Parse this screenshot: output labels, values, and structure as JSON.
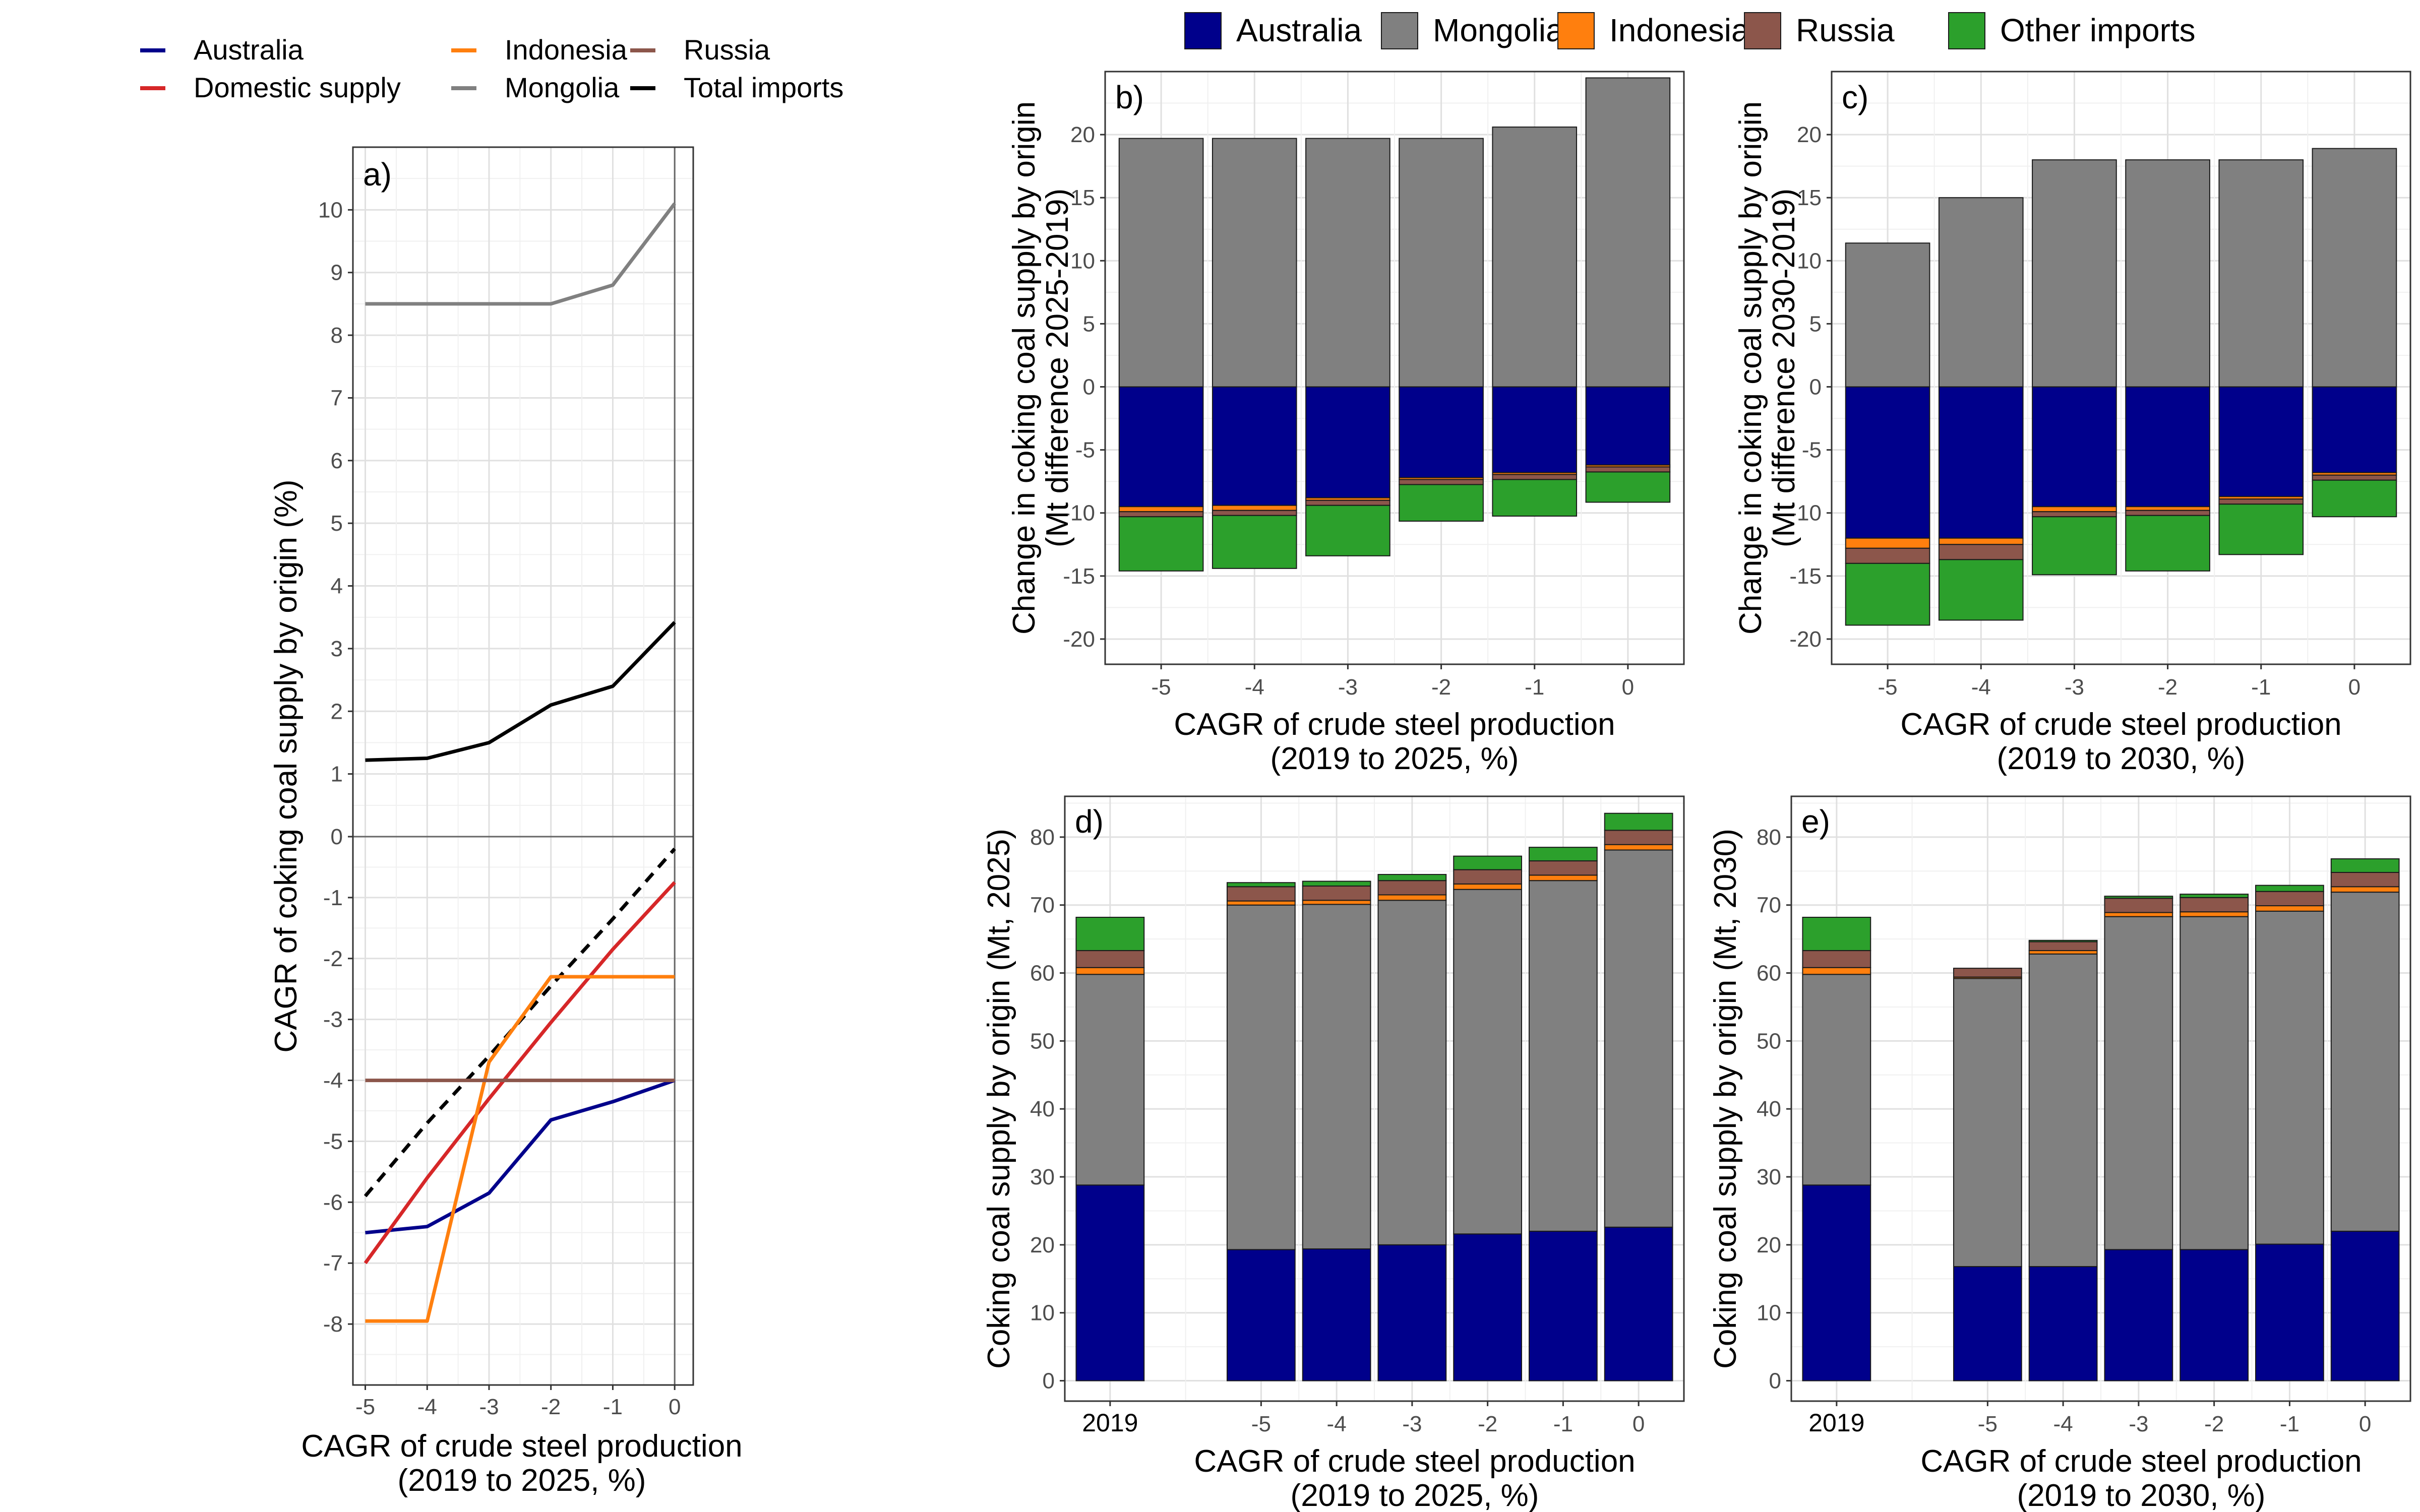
{
  "colors": {
    "Australia": "#00008B",
    "Mongolia": "#808080",
    "Indonesia": "#FF7F0E",
    "Russia": "#8C564B",
    "Other imports": "#2CA02C",
    "Domestic supply": "#D62728",
    "Total imports": "#000000"
  },
  "chart_data": [
    {
      "id": "a",
      "panel_label": "a)",
      "type": "line",
      "xlabel": [
        "CAGR of crude steel production",
        "(2019 to 2025, %)"
      ],
      "ylabel": "CAGR of coking coal supply by origin (%)",
      "x": [
        -5,
        -4,
        -3,
        -2,
        -1,
        0
      ],
      "xlim": [
        -5.2,
        0.3
      ],
      "upper": {
        "ylim": [
          0,
          11
        ],
        "yticks": [
          0,
          1,
          2,
          3,
          4,
          5,
          6,
          7,
          8,
          9,
          10
        ]
      },
      "lower": {
        "ylim": [
          -9,
          0
        ],
        "yticks": [
          -8,
          -7,
          -6,
          -5,
          -4,
          -3,
          -2,
          -1
        ]
      },
      "legend": [
        {
          "name": "Australia",
          "color": "#00008B"
        },
        {
          "name": "Domestic supply",
          "color": "#D62728"
        },
        {
          "name": "Indonesia",
          "color": "#FF7F0E"
        },
        {
          "name": "Mongolia",
          "color": "#808080"
        },
        {
          "name": "Russia",
          "color": "#8C564B"
        },
        {
          "name": "Total imports",
          "color": "#000000"
        }
      ],
      "series": [
        {
          "name": "Mongolia",
          "panel": "upper",
          "values": [
            8.5,
            8.5,
            8.5,
            8.5,
            8.8,
            10.1
          ]
        },
        {
          "name": "Total imports",
          "panel": "upper",
          "values": [
            1.22,
            1.25,
            1.5,
            2.1,
            2.4,
            3.42
          ]
        },
        {
          "name": "Total imports",
          "panel": "lower",
          "dashed": true,
          "values": [
            -5.9,
            -4.7,
            -3.6,
            -2.45,
            -1.35,
            -0.2
          ]
        },
        {
          "name": "Australia",
          "panel": "lower",
          "values": [
            -6.5,
            -6.4,
            -5.85,
            -4.65,
            -4.35,
            -4.0
          ]
        },
        {
          "name": "Domestic supply",
          "panel": "lower",
          "values": [
            -7.0,
            -5.6,
            -4.3,
            -3.05,
            -1.85,
            -0.75
          ]
        },
        {
          "name": "Indonesia",
          "panel": "lower",
          "values": [
            -7.95,
            -7.95,
            -3.7,
            -2.3,
            -2.3,
            -2.3
          ]
        },
        {
          "name": "Russia",
          "panel": "lower",
          "values": [
            -4.0,
            -4.0,
            -4.0,
            -4.0,
            -4.0,
            -4.0
          ]
        }
      ]
    },
    {
      "id": "b",
      "panel_label": "b)",
      "type": "bar",
      "stacked": true,
      "categories": [
        "-5",
        "-4",
        "-3",
        "-2",
        "-1",
        "0"
      ],
      "ylim": [
        -22,
        25
      ],
      "yticks": [
        -20,
        -15,
        -10,
        -5,
        0,
        5,
        10,
        15,
        20
      ],
      "ylabel": [
        "Change in coking coal supply by origin",
        "(Mt difference 2025-2019)"
      ],
      "xlabel": [
        "CAGR of crude steel production",
        "(2019 to 2025, %)"
      ],
      "series": [
        {
          "name": "Mongolia",
          "values": [
            19.7,
            19.7,
            19.7,
            19.7,
            20.6,
            24.5
          ]
        },
        {
          "name": "Australia",
          "values": [
            -9.5,
            -9.4,
            -8.8,
            -7.2,
            -6.8,
            -6.2
          ]
        },
        {
          "name": "Indonesia",
          "values": [
            -0.4,
            -0.4,
            -0.2,
            -0.15,
            -0.15,
            -0.15
          ]
        },
        {
          "name": "Russia",
          "values": [
            -0.4,
            -0.4,
            -0.4,
            -0.4,
            -0.4,
            -0.4
          ]
        },
        {
          "name": "Other imports",
          "values": [
            -4.3,
            -4.2,
            -4.0,
            -2.9,
            -2.9,
            -2.4
          ]
        }
      ]
    },
    {
      "id": "c",
      "panel_label": "c)",
      "type": "bar",
      "stacked": true,
      "categories": [
        "-5",
        "-4",
        "-3",
        "-2",
        "-1",
        "0"
      ],
      "ylim": [
        -22,
        25
      ],
      "yticks": [
        -20,
        -15,
        -10,
        -5,
        0,
        5,
        10,
        15,
        20
      ],
      "ylabel": [
        "Change in coking coal supply by origin",
        "(Mt difference 2030-2019)"
      ],
      "xlabel": [
        "CAGR of crude steel production",
        "(2019 to 2030, %)"
      ],
      "series": [
        {
          "name": "Mongolia",
          "values": [
            11.4,
            15.0,
            18.0,
            18.0,
            18.0,
            18.9
          ]
        },
        {
          "name": "Australia",
          "values": [
            -12.0,
            -12.0,
            -9.5,
            -9.5,
            -8.7,
            -6.8
          ]
        },
        {
          "name": "Indonesia",
          "values": [
            -0.8,
            -0.5,
            -0.4,
            -0.3,
            -0.2,
            -0.2
          ]
        },
        {
          "name": "Russia",
          "values": [
            -1.2,
            -1.2,
            -0.4,
            -0.4,
            -0.4,
            -0.4
          ]
        },
        {
          "name": "Other imports",
          "values": [
            -4.9,
            -4.8,
            -4.6,
            -4.4,
            -4.0,
            -2.9
          ]
        }
      ]
    },
    {
      "id": "d",
      "panel_label": "d)",
      "type": "bar",
      "stacked": true,
      "categories": [
        "2019",
        "-5",
        "-4",
        "-3",
        "-2",
        "-1",
        "0"
      ],
      "ylim": [
        -3,
        86
      ],
      "yticks": [
        0,
        10,
        20,
        30,
        40,
        50,
        60,
        70,
        80
      ],
      "ylabel": [
        "Coking coal supply by origin (Mt, 2025)"
      ],
      "xlabel": [
        "CAGR of crude steel production",
        "(2019 to 2025, %)"
      ],
      "series": [
        {
          "name": "Australia",
          "values": [
            28.8,
            19.3,
            19.4,
            20.0,
            21.6,
            22.0,
            22.6
          ]
        },
        {
          "name": "Mongolia",
          "values": [
            31.0,
            50.7,
            50.7,
            50.7,
            50.7,
            51.6,
            55.5
          ]
        },
        {
          "name": "Indonesia",
          "values": [
            1.0,
            0.6,
            0.6,
            0.8,
            0.8,
            0.8,
            0.8
          ]
        },
        {
          "name": "Russia",
          "values": [
            2.5,
            2.1,
            2.1,
            2.1,
            2.1,
            2.1,
            2.1
          ]
        },
        {
          "name": "Other imports",
          "values": [
            4.9,
            0.6,
            0.7,
            0.9,
            2.0,
            2.0,
            2.5
          ]
        }
      ]
    },
    {
      "id": "e",
      "panel_label": "e)",
      "type": "bar",
      "stacked": true,
      "categories": [
        "2019",
        "-5",
        "-4",
        "-3",
        "-2",
        "-1",
        "0"
      ],
      "ylim": [
        -3,
        86
      ],
      "yticks": [
        0,
        10,
        20,
        30,
        40,
        50,
        60,
        70,
        80
      ],
      "ylabel": [
        "Coking coal supply by origin (Mt, 2030)"
      ],
      "xlabel": [
        "CAGR of crude steel production",
        "(2019 to 2030, %)"
      ],
      "series": [
        {
          "name": "Australia",
          "values": [
            28.8,
            16.8,
            16.8,
            19.3,
            19.3,
            20.1,
            22.0
          ]
        },
        {
          "name": "Mongolia",
          "values": [
            31.0,
            42.4,
            46.0,
            49.0,
            49.0,
            49.0,
            49.9
          ]
        },
        {
          "name": "Indonesia",
          "values": [
            1.0,
            0.2,
            0.5,
            0.6,
            0.7,
            0.8,
            0.8
          ]
        },
        {
          "name": "Russia",
          "values": [
            2.5,
            1.3,
            1.3,
            2.1,
            2.1,
            2.1,
            2.1
          ]
        },
        {
          "name": "Other imports",
          "values": [
            4.9,
            0.0,
            0.2,
            0.3,
            0.5,
            0.9,
            2.0
          ]
        }
      ]
    }
  ],
  "legend_top": [
    "Australia",
    "Mongolia",
    "Indonesia",
    "Russia",
    "Other imports"
  ]
}
